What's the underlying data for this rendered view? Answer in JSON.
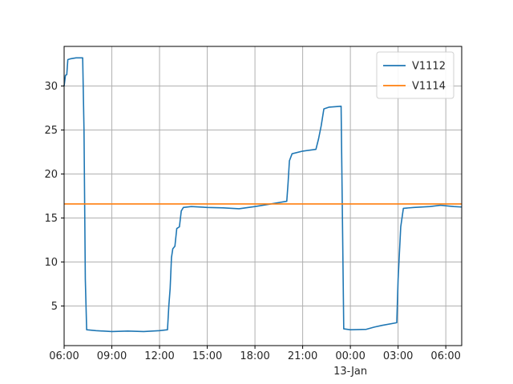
{
  "chart_data": {
    "type": "line",
    "title": "",
    "xlabel": "",
    "ylabel": "",
    "x_axis_type": "time",
    "xlim": [
      "2000-01-12T06:00",
      "2000-01-13T07:00"
    ],
    "ylim": [
      0.5,
      34.5
    ],
    "x_ticks": [
      {
        "x": "2000-01-12T06:00",
        "label": "06:00"
      },
      {
        "x": "2000-01-12T09:00",
        "label": "09:00"
      },
      {
        "x": "2000-01-12T12:00",
        "label": "12:00"
      },
      {
        "x": "2000-01-12T15:00",
        "label": "15:00"
      },
      {
        "x": "2000-01-12T18:00",
        "label": "18:00"
      },
      {
        "x": "2000-01-12T21:00",
        "label": "21:00"
      },
      {
        "x": "2000-01-13T00:00",
        "label": "00:00",
        "sublabel": "13-Jan"
      },
      {
        "x": "2000-01-13T03:00",
        "label": "03:00"
      },
      {
        "x": "2000-01-13T06:00",
        "label": "06:00"
      }
    ],
    "y_ticks": [
      5,
      10,
      15,
      20,
      25,
      30
    ],
    "grid": true,
    "legend": "top-right",
    "series": [
      {
        "name": "V1112",
        "color": "#1f77b4",
        "points": [
          [
            "2000-01-12T06:00",
            30.0
          ],
          [
            "2000-01-12T06:05",
            31.2
          ],
          [
            "2000-01-12T06:10",
            31.3
          ],
          [
            "2000-01-12T06:14",
            33.0
          ],
          [
            "2000-01-12T06:25",
            33.1
          ],
          [
            "2000-01-12T06:45",
            33.2
          ],
          [
            "2000-01-12T07:10",
            33.2
          ],
          [
            "2000-01-12T07:15",
            25.0
          ],
          [
            "2000-01-12T07:20",
            8.0
          ],
          [
            "2000-01-12T07:25",
            2.3
          ],
          [
            "2000-01-12T08:00",
            2.2
          ],
          [
            "2000-01-12T09:00",
            2.1
          ],
          [
            "2000-01-12T10:00",
            2.15
          ],
          [
            "2000-01-12T11:00",
            2.1
          ],
          [
            "2000-01-12T12:00",
            2.2
          ],
          [
            "2000-01-12T12:30",
            2.3
          ],
          [
            "2000-01-12T12:35",
            5.0
          ],
          [
            "2000-01-12T12:40",
            7.0
          ],
          [
            "2000-01-12T12:45",
            10.5
          ],
          [
            "2000-01-12T12:50",
            11.5
          ],
          [
            "2000-01-12T12:58",
            11.8
          ],
          [
            "2000-01-12T13:05",
            13.8
          ],
          [
            "2000-01-12T13:15",
            14.0
          ],
          [
            "2000-01-12T13:22",
            15.8
          ],
          [
            "2000-01-12T13:30",
            16.2
          ],
          [
            "2000-01-12T14:00",
            16.3
          ],
          [
            "2000-01-12T15:00",
            16.2
          ],
          [
            "2000-01-12T16:00",
            16.15
          ],
          [
            "2000-01-12T17:00",
            16.05
          ],
          [
            "2000-01-12T18:00",
            16.3
          ],
          [
            "2000-01-12T19:00",
            16.6
          ],
          [
            "2000-01-12T20:00",
            16.9
          ],
          [
            "2000-01-12T20:05",
            19.0
          ],
          [
            "2000-01-12T20:10",
            21.5
          ],
          [
            "2000-01-12T20:20",
            22.3
          ],
          [
            "2000-01-12T21:00",
            22.6
          ],
          [
            "2000-01-12T21:50",
            22.8
          ],
          [
            "2000-01-12T22:00",
            24.0
          ],
          [
            "2000-01-12T22:10",
            25.5
          ],
          [
            "2000-01-12T22:20",
            27.4
          ],
          [
            "2000-01-12T22:40",
            27.6
          ],
          [
            "2000-01-12T23:25",
            27.7
          ],
          [
            "2000-01-12T23:30",
            15.0
          ],
          [
            "2000-01-12T23:35",
            2.4
          ],
          [
            "2000-01-13T00:00",
            2.3
          ],
          [
            "2000-01-13T01:00",
            2.35
          ],
          [
            "2000-01-13T01:30",
            2.6
          ],
          [
            "2000-01-13T02:00",
            2.8
          ],
          [
            "2000-01-13T02:55",
            3.1
          ],
          [
            "2000-01-13T03:00",
            8.0
          ],
          [
            "2000-01-13T03:05",
            11.0
          ],
          [
            "2000-01-13T03:10",
            14.0
          ],
          [
            "2000-01-13T03:20",
            16.1
          ],
          [
            "2000-01-13T04:00",
            16.2
          ],
          [
            "2000-01-13T05:00",
            16.3
          ],
          [
            "2000-01-13T05:40",
            16.45
          ],
          [
            "2000-01-13T06:30",
            16.3
          ],
          [
            "2000-01-13T07:00",
            16.25
          ]
        ]
      },
      {
        "name": "V1114",
        "color": "#ff7f0e",
        "points": [
          [
            "2000-01-12T06:00",
            16.6
          ],
          [
            "2000-01-13T07:00",
            16.6
          ]
        ]
      }
    ]
  }
}
